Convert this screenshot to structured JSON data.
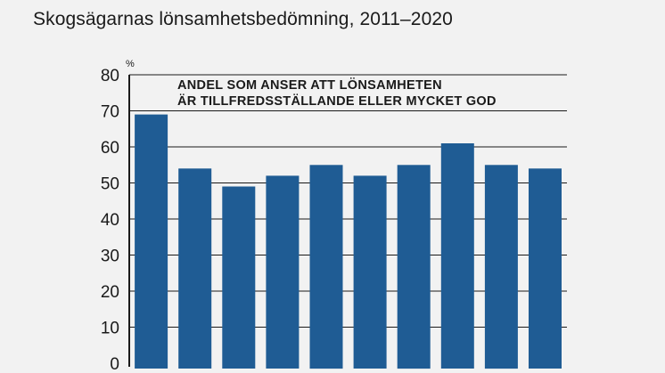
{
  "title": "Skogsägarnas lönsamhetsbedömning, 2011–2020",
  "colors": {
    "bar": "#1f5c94",
    "background": "#f2f2f2",
    "gridline": "#1a1a1a",
    "text": "#1a1a1a"
  },
  "chart_data": {
    "type": "bar",
    "title": "Skogsägarnas lönsamhetsbedömning, 2011–2020",
    "annotation_lines": [
      "ANDEL SOM ANSER ATT LÖNSAMHETEN",
      "ÄR TILLFREDSSTÄLLANDE ELLER MYCKET GOD"
    ],
    "unit": "%",
    "values": [
      69,
      54,
      49,
      52,
      55,
      52,
      55,
      61,
      55,
      54
    ],
    "ylim": [
      0,
      80
    ],
    "yticks": [
      0,
      10,
      20,
      30,
      40,
      50,
      60,
      70,
      80
    ],
    "grid": true
  }
}
